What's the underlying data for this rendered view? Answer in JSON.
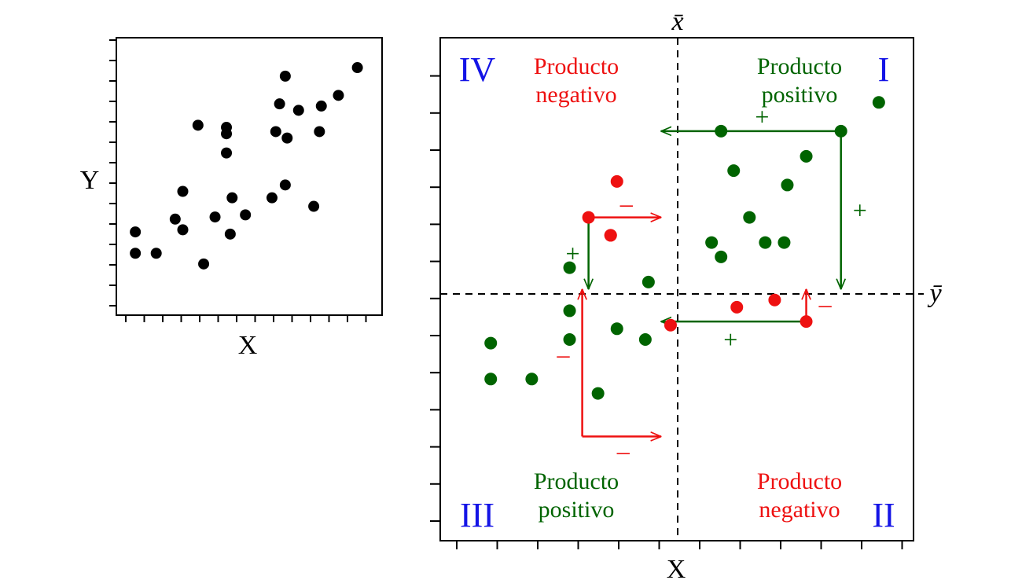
{
  "colors": {
    "positive": "#006400",
    "negative": "#ee1111",
    "numeral": "#1414e6",
    "ink": "#000000"
  },
  "small_plot": {
    "xlabel": "X",
    "ylabel": "Y",
    "points": [
      [
        1.0,
        3.9
      ],
      [
        1.0,
        2.9
      ],
      [
        2.1,
        2.9
      ],
      [
        3.1,
        4.5
      ],
      [
        3.5,
        5.8
      ],
      [
        3.5,
        4.0
      ],
      [
        4.6,
        2.4
      ],
      [
        4.3,
        8.9
      ],
      [
        5.2,
        4.6
      ],
      [
        5.8,
        7.6
      ],
      [
        5.8,
        8.5
      ],
      [
        5.8,
        8.8
      ],
      [
        6.0,
        3.8
      ],
      [
        6.1,
        5.5
      ],
      [
        6.8,
        4.7
      ],
      [
        8.2,
        5.5
      ],
      [
        8.4,
        8.6
      ],
      [
        8.6,
        9.9
      ],
      [
        8.9,
        11.2
      ],
      [
        9.0,
        8.3
      ],
      [
        8.9,
        6.1
      ],
      [
        9.6,
        9.6
      ],
      [
        10.4,
        5.1
      ],
      [
        10.7,
        8.6
      ],
      [
        10.8,
        9.8
      ],
      [
        11.7,
        10.3
      ],
      [
        12.7,
        11.6
      ]
    ]
  },
  "quadrant_plot": {
    "xlabel": "X",
    "xbar_label": "x̄",
    "ybar_label": "ȳ",
    "xbar": 6.0,
    "ybar": 6.0,
    "quadrants": {
      "I": {
        "numeral": "I",
        "line1": "Producto",
        "line2": "positivo"
      },
      "II": {
        "numeral": "II",
        "line1": "Producto",
        "line2": "negativo"
      },
      "III": {
        "numeral": "III",
        "line1": "Producto",
        "line2": "positivo"
      },
      "IV": {
        "numeral": "IV",
        "line1": "Producto",
        "line2": "negativo"
      }
    },
    "positive_points": [
      [
        0.6,
        4.5
      ],
      [
        0.6,
        3.5
      ],
      [
        1.9,
        3.5
      ],
      [
        3.1,
        5.4
      ],
      [
        3.1,
        4.6
      ],
      [
        3.1,
        6.6
      ],
      [
        4.0,
        3.1
      ],
      [
        4.6,
        4.9
      ],
      [
        5.5,
        4.6
      ],
      [
        5.6,
        6.2
      ],
      [
        7.9,
        10.4
      ],
      [
        8.3,
        9.3
      ],
      [
        7.6,
        7.3
      ],
      [
        7.9,
        6.9
      ],
      [
        8.8,
        8.0
      ],
      [
        9.3,
        7.3
      ],
      [
        10.0,
        8.9
      ],
      [
        10.6,
        9.7
      ],
      [
        11.7,
        10.4
      ],
      [
        12.9,
        11.2
      ],
      [
        9.9,
        7.3
      ]
    ],
    "negative_points": [
      [
        4.6,
        9.0
      ],
      [
        3.7,
        8.0
      ],
      [
        4.4,
        7.5
      ],
      [
        4.4,
        7.5
      ],
      [
        6.3,
        5.0
      ],
      [
        8.4,
        5.5
      ],
      [
        9.6,
        5.7
      ],
      [
        10.6,
        5.1
      ]
    ],
    "arrows": [
      {
        "from": [
          11.7,
          10.4
        ],
        "to": [
          6.0,
          10.4
        ],
        "color": "positive",
        "sign": "+",
        "sign_at": [
          9.2,
          10.8
        ]
      },
      {
        "from": [
          11.7,
          10.4
        ],
        "to": [
          11.7,
          6.0
        ],
        "color": "positive",
        "sign": "+",
        "sign_at": [
          12.3,
          8.2
        ]
      },
      {
        "from": [
          3.7,
          8.0
        ],
        "to": [
          6.0,
          8.0
        ],
        "color": "negative",
        "sign": "–",
        "sign_at": [
          4.9,
          8.4
        ]
      },
      {
        "from": [
          3.7,
          8.0
        ],
        "to": [
          3.7,
          6.0
        ],
        "color": "positive",
        "sign": "+",
        "sign_at": [
          3.2,
          7.0
        ]
      },
      {
        "from": [
          10.6,
          5.1
        ],
        "to": [
          10.6,
          6.0
        ],
        "color": "negative",
        "sign": "–",
        "sign_at": [
          11.2,
          5.6
        ]
      },
      {
        "from": [
          10.6,
          5.1
        ],
        "to": [
          6.0,
          5.1
        ],
        "color": "positive",
        "sign": "+",
        "sign_at": [
          8.2,
          4.6
        ]
      },
      {
        "from": [
          3.5,
          1.9
        ],
        "to": [
          3.5,
          6.0
        ],
        "color": "negative",
        "sign": "–",
        "sign_at": [
          2.9,
          4.2
        ]
      },
      {
        "from": [
          3.5,
          1.9
        ],
        "to": [
          6.0,
          1.9
        ],
        "color": "negative",
        "sign": "–",
        "sign_at": [
          4.8,
          1.5
        ]
      }
    ]
  }
}
